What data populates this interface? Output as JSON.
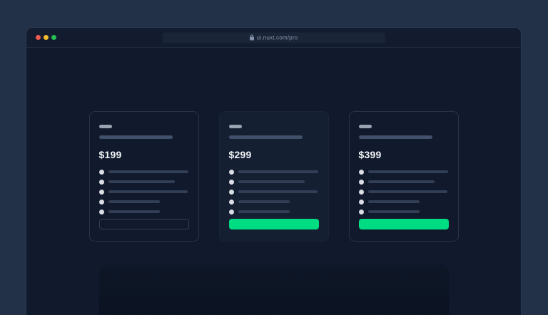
{
  "window": {
    "url": "ui.nuxt.com/pro",
    "controls": [
      {
        "name": "close",
        "color": "#ef5a52"
      },
      {
        "name": "minimize",
        "color": "#f3bb2f"
      },
      {
        "name": "zoom",
        "color": "#27bf55"
      }
    ]
  },
  "pricing": {
    "plans": [
      {
        "name": "plan-1",
        "price": "$199",
        "highlighted": false,
        "cta_style": "outline",
        "feature_bar_widths": [
          112,
          93,
          111,
          72,
          72
        ]
      },
      {
        "name": "plan-2",
        "price": "$299",
        "highlighted": true,
        "cta_style": "solid",
        "feature_bar_widths": [
          112,
          93,
          111,
          72,
          72
        ]
      },
      {
        "name": "plan-3",
        "price": "$399",
        "highlighted": false,
        "cta_style": "solid",
        "feature_bar_widths": [
          112,
          93,
          111,
          72,
          72
        ]
      }
    ]
  },
  "colors": {
    "accent_green": "#00dc82",
    "desktop_background": "#223048",
    "window_background": "#101a2c",
    "card_highlight_background": "#151f32"
  }
}
